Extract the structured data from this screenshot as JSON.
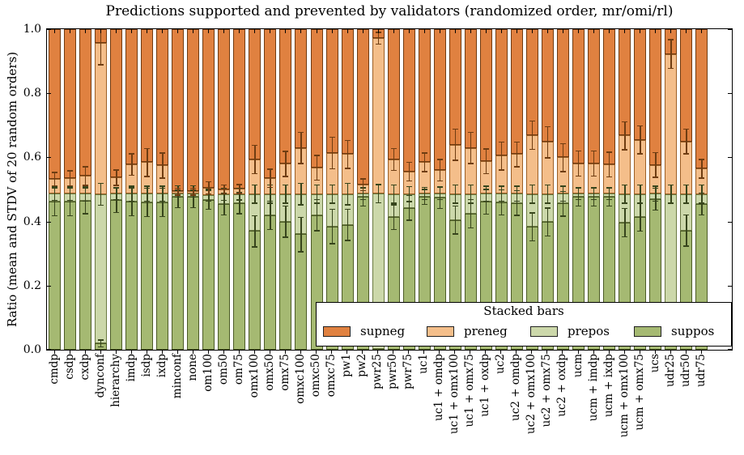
{
  "title": "Predictions supported and prevented by validators (randomized order, mr/omi/rl)",
  "ylabel": "Ratio (mean and STDV of 20 random orders)",
  "yticks": [
    "0.0",
    "0.2",
    "0.4",
    "0.6",
    "0.8",
    "1.0"
  ],
  "legend": {
    "title": "Stacked bars",
    "entries": [
      "supneg",
      "preneg",
      "prepos",
      "suppos"
    ]
  },
  "colors": {
    "supneg": "#e08140",
    "preneg": "#f4be8a",
    "prepos": "#ccd8aa",
    "suppos": "#a5b972",
    "supneg_edge": "#703a10",
    "preneg_edge": "#9c5f26",
    "prepos_edge": "#6b7a42",
    "suppos_edge": "#4c5b26",
    "err_green": "#37451c",
    "err_orange": "#6f3d12",
    "axis": "#000000"
  },
  "chart_data": {
    "type": "bar",
    "stacked": true,
    "title": "Predictions supported and prevented by validators (randomized order, mr/omi/rl)",
    "xlabel": "",
    "ylabel": "Ratio (mean and STDV of 20 random orders)",
    "ylim": [
      0,
      1.0
    ],
    "grid": false,
    "legend_title": "Stacked bars",
    "legend_position": "lower right",
    "categories": [
      "cmdp",
      "csdp",
      "cxdp",
      "dynconf",
      "hierarchy",
      "imdp",
      "isdp",
      "ixdp",
      "minconf",
      "none",
      "om100",
      "om50",
      "om75",
      "omx100",
      "omx50",
      "omx75",
      "omxc100",
      "omxc50",
      "omxc75",
      "pw1",
      "pw2",
      "pwr25",
      "pwr50",
      "pwr75",
      "uc1",
      "uc1 + omdp",
      "uc1 + omx100",
      "uc1 + omx75",
      "uc1 + oxdp",
      "uc2",
      "uc2 + omdp",
      "uc2 + omx100",
      "uc2 + omx75",
      "uc2 + oxdp",
      "ucm",
      "ucm + imdp",
      "ucm + ixdp",
      "ucm + omx100",
      "ucm + omx75",
      "ucs",
      "udr25",
      "udr50",
      "udr75"
    ],
    "series": [
      {
        "name": "suppos",
        "color": "#a5b972",
        "edge": "#4c5b26",
        "values": [
          0.462,
          0.462,
          0.465,
          0.02,
          0.468,
          0.462,
          0.46,
          0.46,
          0.478,
          0.478,
          0.468,
          0.455,
          0.458,
          0.37,
          0.42,
          0.4,
          0.36,
          0.42,
          0.385,
          0.39,
          0.478,
          0.002,
          0.414,
          0.443,
          0.477,
          0.475,
          0.405,
          0.425,
          0.462,
          0.46,
          0.458,
          0.384,
          0.399,
          0.456,
          0.477,
          0.477,
          0.477,
          0.397,
          0.414,
          0.47,
          0.02,
          0.372,
          0.455
        ]
      },
      {
        "name": "prepos",
        "color": "#ccd8aa",
        "edge": "#6b7a42",
        "values": [
          0.025,
          0.025,
          0.022,
          0.465,
          0.019,
          0.025,
          0.027,
          0.027,
          0.009,
          0.009,
          0.014,
          0.03,
          0.028,
          0.116,
          0.066,
          0.086,
          0.126,
          0.066,
          0.101,
          0.096,
          0.009,
          0.485,
          0.072,
          0.043,
          0.011,
          0.013,
          0.081,
          0.061,
          0.025,
          0.027,
          0.029,
          0.102,
          0.087,
          0.031,
          0.01,
          0.01,
          0.01,
          0.089,
          0.072,
          0.017,
          0.466,
          0.114,
          0.031
        ]
      },
      {
        "name": "preneg",
        "color": "#f4be8a",
        "edge": "#9c5f26",
        "values": [
          0.046,
          0.048,
          0.055,
          0.473,
          0.05,
          0.091,
          0.098,
          0.088,
          0.007,
          0.007,
          0.023,
          0.015,
          0.016,
          0.108,
          0.049,
          0.094,
          0.144,
          0.082,
          0.128,
          0.124,
          0.028,
          0.485,
          0.108,
          0.07,
          0.097,
          0.072,
          0.154,
          0.144,
          0.101,
          0.118,
          0.123,
          0.184,
          0.162,
          0.113,
          0.094,
          0.094,
          0.091,
          0.182,
          0.169,
          0.09,
          0.437,
          0.164,
          0.079
        ]
      },
      {
        "name": "supneg",
        "color": "#e08140",
        "edge": "#703a10",
        "values": [
          0.467,
          0.465,
          0.458,
          0.042,
          0.463,
          0.422,
          0.415,
          0.425,
          0.506,
          0.506,
          0.495,
          0.5,
          0.498,
          0.406,
          0.465,
          0.42,
          0.37,
          0.432,
          0.386,
          0.39,
          0.485,
          0.028,
          0.406,
          0.444,
          0.415,
          0.44,
          0.36,
          0.37,
          0.412,
          0.395,
          0.39,
          0.33,
          0.352,
          0.4,
          0.419,
          0.419,
          0.422,
          0.332,
          0.345,
          0.423,
          0.077,
          0.35,
          0.435
        ]
      }
    ],
    "errors": {
      "suppos": [
        0.045,
        0.045,
        0.042,
        0.012,
        0.04,
        0.045,
        0.045,
        0.045,
        0.035,
        0.035,
        0.03,
        0.035,
        0.035,
        0.05,
        0.045,
        0.05,
        0.055,
        0.05,
        0.055,
        0.05,
        0.03,
        0.003,
        0.04,
        0.04,
        0.025,
        0.035,
        0.045,
        0.045,
        0.04,
        0.04,
        0.04,
        0.045,
        0.045,
        0.04,
        0.03,
        0.03,
        0.03,
        0.045,
        0.045,
        0.035,
        0.01,
        0.05,
        0.035
      ],
      "prepos": [
        0.022,
        0.022,
        0.025,
        0.035,
        0.02,
        0.025,
        0.025,
        0.025,
        0.012,
        0.012,
        0.02,
        0.02,
        0.02,
        0.03,
        0.03,
        0.03,
        0.035,
        0.03,
        0.03,
        0.035,
        0.02,
        0.03,
        0.03,
        0.025,
        0.02,
        0.02,
        0.03,
        0.03,
        0.025,
        0.025,
        0.025,
        0.03,
        0.03,
        0.025,
        0.02,
        0.02,
        0.02,
        0.03,
        0.03,
        0.025,
        0.03,
        0.03,
        0.03
      ],
      "preneg": [
        0.022,
        0.025,
        0.03,
        0.07,
        0.025,
        0.035,
        0.045,
        0.04,
        0.012,
        0.012,
        0.02,
        0.015,
        0.015,
        0.045,
        0.03,
        0.04,
        0.05,
        0.04,
        0.05,
        0.045,
        0.02,
        0.02,
        0.035,
        0.03,
        0.03,
        0.035,
        0.05,
        0.05,
        0.04,
        0.045,
        0.04,
        0.045,
        0.05,
        0.045,
        0.04,
        0.04,
        0.04,
        0.045,
        0.045,
        0.04,
        0.046,
        0.04,
        0.03
      ]
    }
  }
}
